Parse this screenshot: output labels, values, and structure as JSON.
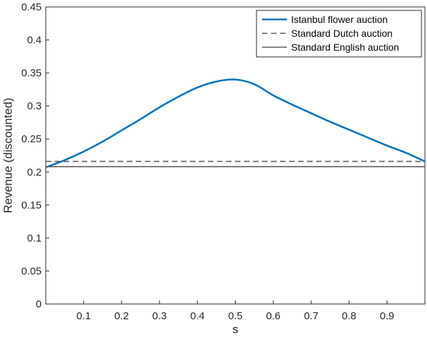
{
  "chart_data": {
    "type": "line",
    "xlabel": "s",
    "ylabel": "Revenue (discounted)",
    "xlim": [
      0,
      1
    ],
    "ylim": [
      0,
      0.45
    ],
    "xticks": [
      0.1,
      0.2,
      0.3,
      0.4,
      0.5,
      0.6,
      0.7,
      0.8,
      0.9
    ],
    "xtick_labels": [
      "0.1",
      "0.2",
      "0.3",
      "0.4",
      "0.5",
      "0.6",
      "0.7",
      "0.8",
      "0.9"
    ],
    "yticks": [
      0,
      0.05,
      0.1,
      0.15,
      0.2,
      0.25,
      0.3,
      0.35,
      0.4,
      0.45
    ],
    "ytick_labels": [
      "0",
      "0.05",
      "0.1",
      "0.15",
      "0.2",
      "0.25",
      "0.3",
      "0.35",
      "0.4",
      "0.45"
    ],
    "grid": false,
    "legend_position": "top-right",
    "series": [
      {
        "name": "Istanbul flower auction",
        "style": "solid",
        "color": "#0072BD",
        "x": [
          0,
          0.05,
          0.1,
          0.15,
          0.2,
          0.25,
          0.3,
          0.35,
          0.4,
          0.45,
          0.5,
          0.55,
          0.6,
          0.65,
          0.7,
          0.75,
          0.8,
          0.85,
          0.9,
          0.95,
          1.0
        ],
        "y": [
          0.207,
          0.218,
          0.231,
          0.246,
          0.263,
          0.28,
          0.298,
          0.314,
          0.328,
          0.337,
          0.34,
          0.333,
          0.316,
          0.302,
          0.289,
          0.276,
          0.264,
          0.252,
          0.24,
          0.229,
          0.216
        ]
      },
      {
        "name": "Standard Dutch auction",
        "style": "dashed",
        "color": "#5a5a5a",
        "x": [
          0,
          1
        ],
        "y": [
          0.216,
          0.216
        ]
      },
      {
        "name": "Standard English auction",
        "style": "solid",
        "color": "#5a5a5a",
        "x": [
          0,
          1
        ],
        "y": [
          0.208,
          0.208
        ]
      }
    ]
  }
}
